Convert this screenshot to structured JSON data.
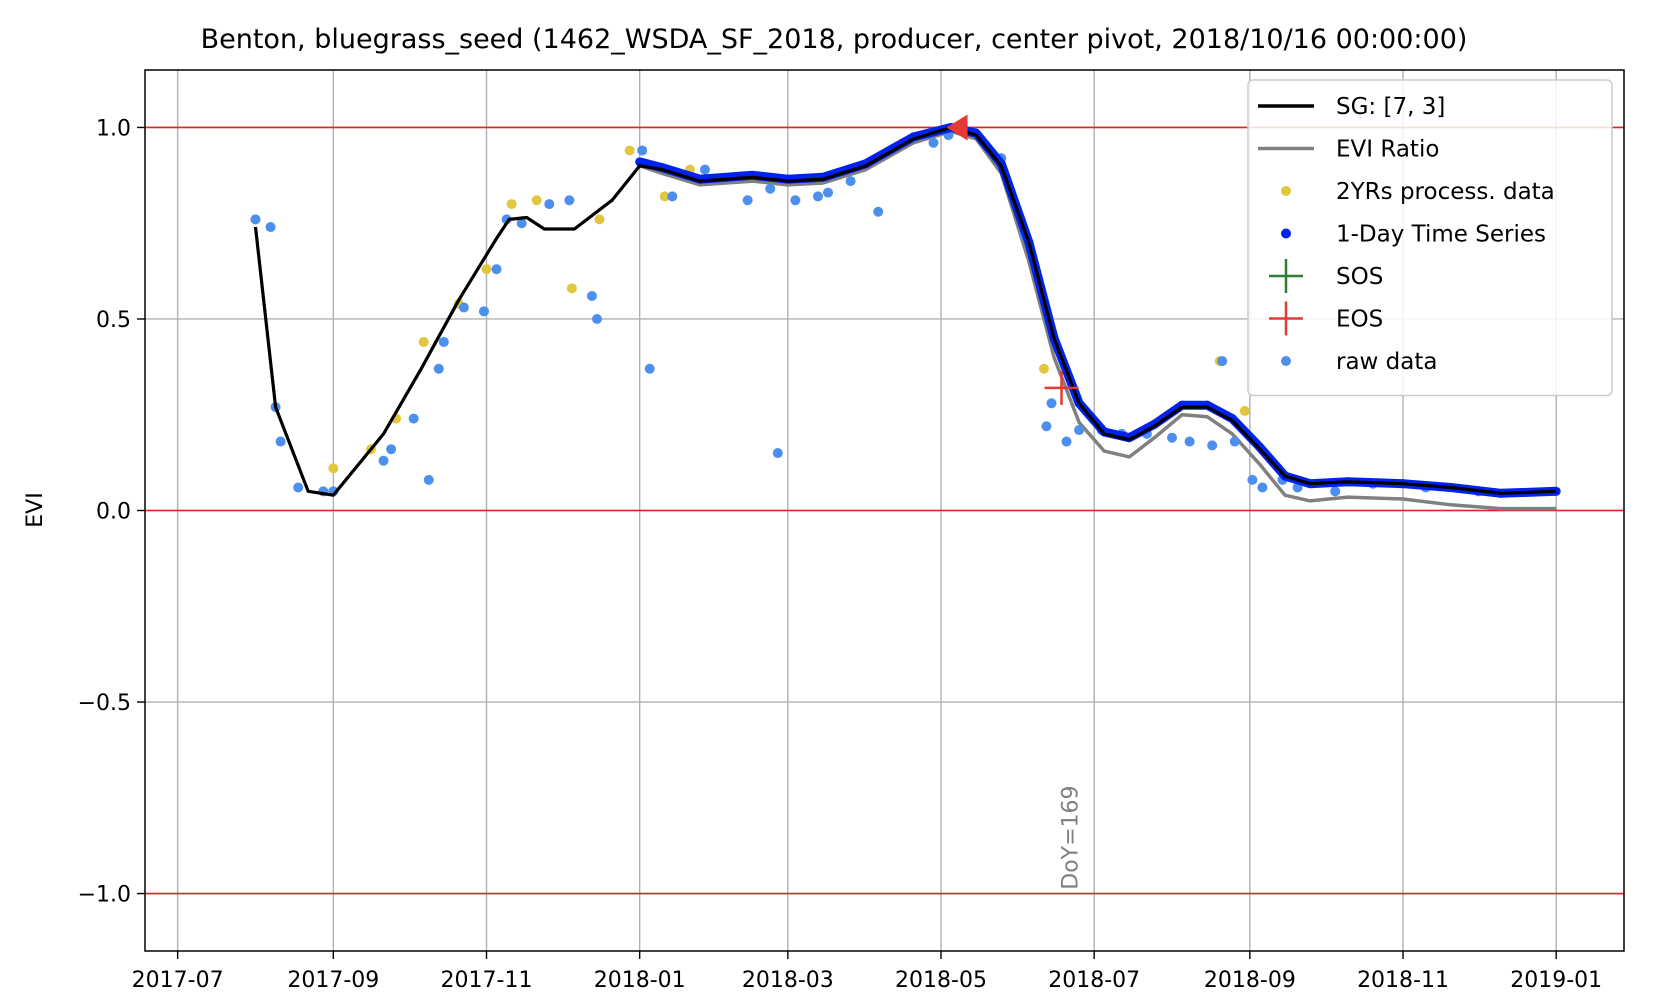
{
  "chart_data": {
    "type": "line",
    "title": "Benton, bluegrass_seed (1462_WSDA_SF_2018, producer, center pivot, 2018/10/16 00:00:00)",
    "xlabel": "",
    "ylabel": "EVI",
    "xlim": [
      "2017-06-18",
      "2019-01-28"
    ],
    "ylim": [
      -1.15,
      1.15
    ],
    "x_ticks": [
      "2017-07",
      "2017-09",
      "2017-11",
      "2018-01",
      "2018-03",
      "2018-05",
      "2018-07",
      "2018-09",
      "2018-11",
      "2019-01"
    ],
    "y_ticks": [
      "1.0",
      "0.5",
      "0.0",
      "−0.5",
      "−1.0"
    ],
    "y_tick_values": [
      1.0,
      0.5,
      0.0,
      -0.5,
      -1.0
    ],
    "grid": true,
    "legend_position": "top-right",
    "reference_lines": [
      1.0,
      0.0,
      -1.0
    ],
    "colors": {
      "sg": "#000000",
      "evi_ratio": "#808080",
      "yrs2": "#e1c73f",
      "one_day": "#0022ee",
      "sos": "#2e7d32",
      "eos": "#e53935",
      "raw": "#4d8fef",
      "refline": "#e52020",
      "grid": "#b0b0b0"
    },
    "legend": [
      {
        "label": "SG: [7, 3]",
        "kind": "line",
        "color": "#000000"
      },
      {
        "label": "EVI Ratio",
        "kind": "line",
        "color": "#808080"
      },
      {
        "label": "2YRs process. data",
        "kind": "dot",
        "color": "#e1c73f"
      },
      {
        "label": "1-Day Time Series",
        "kind": "dot",
        "color": "#0022ee"
      },
      {
        "label": "SOS",
        "kind": "plus",
        "color": "#2e7d32"
      },
      {
        "label": "EOS",
        "kind": "plus",
        "color": "#e53935"
      },
      {
        "label": "raw data",
        "kind": "dot",
        "color": "#4d8fef"
      }
    ],
    "series": [
      {
        "name": "SG: [7, 3]",
        "points": [
          [
            "2017-08-01",
            0.74
          ],
          [
            "2017-08-09",
            0.27
          ],
          [
            "2017-08-22",
            0.05
          ],
          [
            "2017-09-01",
            0.04
          ],
          [
            "2017-09-21",
            0.2
          ],
          [
            "2017-10-06",
            0.37
          ],
          [
            "2017-10-21",
            0.55
          ],
          [
            "2017-11-05",
            0.71
          ],
          [
            "2017-11-10",
            0.76
          ],
          [
            "2017-11-17",
            0.765
          ],
          [
            "2017-11-24",
            0.735
          ],
          [
            "2017-12-06",
            0.735
          ],
          [
            "2017-12-21",
            0.81
          ],
          [
            "2018-01-01",
            0.9
          ],
          [
            "2018-01-10",
            0.89
          ],
          [
            "2018-01-25",
            0.86
          ],
          [
            "2018-02-15",
            0.87
          ],
          [
            "2018-03-01",
            0.86
          ],
          [
            "2018-03-15",
            0.865
          ],
          [
            "2018-04-01",
            0.9
          ],
          [
            "2018-04-20",
            0.97
          ],
          [
            "2018-05-05",
            1.0
          ],
          [
            "2018-05-15",
            0.98
          ],
          [
            "2018-05-25",
            0.9
          ],
          [
            "2018-06-05",
            0.7
          ],
          [
            "2018-06-15",
            0.45
          ],
          [
            "2018-06-25",
            0.28
          ],
          [
            "2018-07-05",
            0.2
          ],
          [
            "2018-07-15",
            0.185
          ],
          [
            "2018-07-25",
            0.22
          ],
          [
            "2018-08-05",
            0.27
          ],
          [
            "2018-08-15",
            0.27
          ],
          [
            "2018-08-25",
            0.235
          ],
          [
            "2018-09-05",
            0.16
          ],
          [
            "2018-09-15",
            0.09
          ],
          [
            "2018-09-25",
            0.07
          ],
          [
            "2018-10-10",
            0.075
          ],
          [
            "2018-11-01",
            0.07
          ],
          [
            "2018-11-20",
            0.06
          ],
          [
            "2018-12-10",
            0.045
          ],
          [
            "2019-01-01",
            0.05
          ]
        ]
      },
      {
        "name": "EVI Ratio",
        "points": [
          [
            "2018-01-01",
            0.9
          ],
          [
            "2018-01-10",
            0.88
          ],
          [
            "2018-01-25",
            0.85
          ],
          [
            "2018-02-15",
            0.86
          ],
          [
            "2018-03-01",
            0.85
          ],
          [
            "2018-03-15",
            0.855
          ],
          [
            "2018-04-01",
            0.89
          ],
          [
            "2018-04-20",
            0.96
          ],
          [
            "2018-05-05",
            0.99
          ],
          [
            "2018-05-15",
            0.97
          ],
          [
            "2018-05-25",
            0.88
          ],
          [
            "2018-06-05",
            0.65
          ],
          [
            "2018-06-15",
            0.4
          ],
          [
            "2018-06-25",
            0.23
          ],
          [
            "2018-07-05",
            0.155
          ],
          [
            "2018-07-15",
            0.14
          ],
          [
            "2018-07-25",
            0.19
          ],
          [
            "2018-08-05",
            0.25
          ],
          [
            "2018-08-15",
            0.245
          ],
          [
            "2018-08-25",
            0.2
          ],
          [
            "2018-09-05",
            0.12
          ],
          [
            "2018-09-15",
            0.04
          ],
          [
            "2018-09-25",
            0.025
          ],
          [
            "2018-10-10",
            0.035
          ],
          [
            "2018-11-01",
            0.03
          ],
          [
            "2018-11-20",
            0.015
          ],
          [
            "2018-12-10",
            0.005
          ],
          [
            "2019-01-01",
            0.005
          ]
        ]
      },
      {
        "name": "1-Day Time Series",
        "points": [
          [
            "2018-01-01",
            0.91
          ],
          [
            "2018-01-10",
            0.895
          ],
          [
            "2018-01-25",
            0.865
          ],
          [
            "2018-02-15",
            0.875
          ],
          [
            "2018-03-01",
            0.865
          ],
          [
            "2018-03-15",
            0.87
          ],
          [
            "2018-04-01",
            0.905
          ],
          [
            "2018-04-20",
            0.975
          ],
          [
            "2018-05-05",
            1.0
          ],
          [
            "2018-05-15",
            0.985
          ],
          [
            "2018-05-25",
            0.905
          ],
          [
            "2018-06-05",
            0.7
          ],
          [
            "2018-06-15",
            0.45
          ],
          [
            "2018-06-25",
            0.28
          ],
          [
            "2018-07-05",
            0.205
          ],
          [
            "2018-07-15",
            0.19
          ],
          [
            "2018-07-25",
            0.225
          ],
          [
            "2018-08-05",
            0.275
          ],
          [
            "2018-08-15",
            0.275
          ],
          [
            "2018-08-25",
            0.24
          ],
          [
            "2018-09-05",
            0.165
          ],
          [
            "2018-09-15",
            0.09
          ],
          [
            "2018-09-25",
            0.07
          ],
          [
            "2018-10-10",
            0.075
          ],
          [
            "2018-11-01",
            0.07
          ],
          [
            "2018-11-20",
            0.06
          ],
          [
            "2018-12-10",
            0.045
          ],
          [
            "2019-01-01",
            0.05
          ]
        ]
      },
      {
        "name": "2YRs process. data",
        "points": [
          [
            "2017-08-01",
            0.76
          ],
          [
            "2017-09-01",
            0.11
          ],
          [
            "2017-09-16",
            0.16
          ],
          [
            "2017-09-26",
            0.24
          ],
          [
            "2017-10-07",
            0.44
          ],
          [
            "2017-10-21",
            0.54
          ],
          [
            "2017-11-01",
            0.63
          ],
          [
            "2017-11-11",
            0.8
          ],
          [
            "2017-11-21",
            0.81
          ],
          [
            "2017-12-05",
            0.58
          ],
          [
            "2017-12-16",
            0.76
          ],
          [
            "2017-12-28",
            0.94
          ],
          [
            "2018-01-11",
            0.82
          ],
          [
            "2018-01-21",
            0.89
          ],
          [
            "2018-06-11",
            0.37
          ],
          [
            "2018-08-20",
            0.39
          ],
          [
            "2018-08-30",
            0.26
          ]
        ]
      },
      {
        "name": "raw data",
        "points": [
          [
            "2017-08-01",
            0.76
          ],
          [
            "2017-08-07",
            0.74
          ],
          [
            "2017-08-09",
            0.27
          ],
          [
            "2017-08-11",
            0.18
          ],
          [
            "2017-08-18",
            0.06
          ],
          [
            "2017-08-28",
            0.05
          ],
          [
            "2017-09-01",
            0.05
          ],
          [
            "2017-09-21",
            0.13
          ],
          [
            "2017-09-24",
            0.16
          ],
          [
            "2017-10-03",
            0.24
          ],
          [
            "2017-10-09",
            0.08
          ],
          [
            "2017-10-13",
            0.37
          ],
          [
            "2017-10-15",
            0.44
          ],
          [
            "2017-10-23",
            0.53
          ],
          [
            "2017-10-31",
            0.52
          ],
          [
            "2017-11-05",
            0.63
          ],
          [
            "2017-11-09",
            0.76
          ],
          [
            "2017-11-15",
            0.75
          ],
          [
            "2017-11-26",
            0.8
          ],
          [
            "2017-12-04",
            0.81
          ],
          [
            "2017-12-13",
            0.56
          ],
          [
            "2017-12-15",
            0.5
          ],
          [
            "2018-01-02",
            0.94
          ],
          [
            "2018-01-05",
            0.37
          ],
          [
            "2018-01-14",
            0.82
          ],
          [
            "2018-01-27",
            0.89
          ],
          [
            "2018-02-13",
            0.81
          ],
          [
            "2018-02-22",
            0.84
          ],
          [
            "2018-02-25",
            0.15
          ],
          [
            "2018-03-04",
            0.81
          ],
          [
            "2018-03-13",
            0.82
          ],
          [
            "2018-03-17",
            0.83
          ],
          [
            "2018-03-26",
            0.86
          ],
          [
            "2018-04-06",
            0.78
          ],
          [
            "2018-04-28",
            0.96
          ],
          [
            "2018-05-04",
            0.98
          ],
          [
            "2018-05-25",
            0.92
          ],
          [
            "2018-06-03",
            0.72
          ],
          [
            "2018-06-12",
            0.22
          ],
          [
            "2018-06-14",
            0.28
          ],
          [
            "2018-06-20",
            0.18
          ],
          [
            "2018-06-25",
            0.21
          ],
          [
            "2018-07-04",
            0.21
          ],
          [
            "2018-07-12",
            0.2
          ],
          [
            "2018-07-22",
            0.2
          ],
          [
            "2018-08-01",
            0.19
          ],
          [
            "2018-08-08",
            0.18
          ],
          [
            "2018-08-17",
            0.17
          ],
          [
            "2018-08-21",
            0.39
          ],
          [
            "2018-08-26",
            0.18
          ],
          [
            "2018-09-02",
            0.08
          ],
          [
            "2018-09-06",
            0.06
          ],
          [
            "2018-09-14",
            0.08
          ],
          [
            "2018-09-20",
            0.06
          ],
          [
            "2018-10-05",
            0.05
          ],
          [
            "2018-10-20",
            0.07
          ],
          [
            "2018-11-10",
            0.06
          ],
          [
            "2018-12-01",
            0.05
          ]
        ]
      }
    ],
    "sos": [],
    "eos": [
      {
        "x": "2018-06-18",
        "y": 0.32
      }
    ],
    "peak_marker": {
      "x": "2018-05-08",
      "y": 1.0,
      "color": "#e53935"
    },
    "annotations": [
      {
        "text": "DoY=169",
        "x": "2018-06-18",
        "y": -0.99,
        "rotation": -90
      }
    ]
  }
}
